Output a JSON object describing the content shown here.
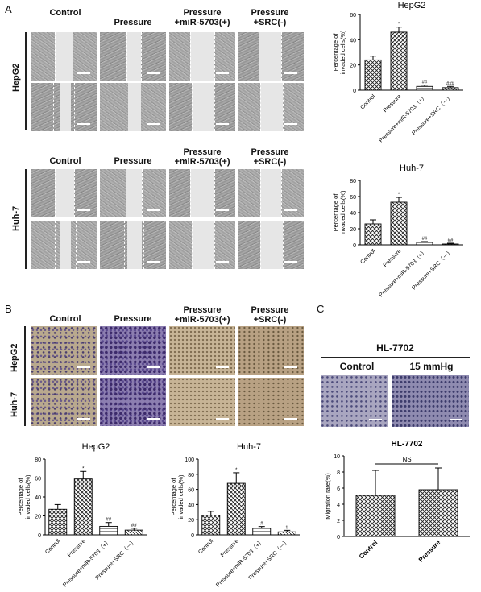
{
  "panels": {
    "A": "A",
    "B": "B",
    "C": "C"
  },
  "col_titles": {
    "control": "Control",
    "pressure": "Pressure",
    "mir_line1": "Pressure",
    "mir_line2": "+miR-5703(+)",
    "src_line1": "Pressure",
    "src_line2": "+SRC(-)"
  },
  "row_labels": {
    "hepg2": "HepG2",
    "huh7": "Huh-7"
  },
  "panel_c": {
    "title": "HL-7702",
    "control": "Control",
    "pressure": "15 mmHg"
  },
  "chart_data": [
    {
      "type": "bar",
      "title": "HepG2",
      "ylabel": "Percentage of invaded cells(%)",
      "categories": [
        "Control",
        "Pressure",
        "Pressure+miR-5703（+）",
        "Pressure+SRC（－）"
      ],
      "values": [
        24,
        46,
        3,
        2
      ],
      "errors": [
        3,
        4,
        1,
        1
      ],
      "annotations": [
        "",
        "*",
        "##",
        "###"
      ],
      "ylim": [
        0,
        60
      ],
      "yticks": [
        "0",
        "20",
        "40",
        "60"
      ]
    },
    {
      "type": "bar",
      "title": "Huh-7",
      "ylabel": "Percentage of invaded cells(%)",
      "categories": [
        "Control",
        "Pressure",
        "Pressure+miR-5703（+）",
        "Pressure+SRC（－）"
      ],
      "values": [
        26,
        53,
        3,
        1
      ],
      "errors": [
        5,
        6,
        1,
        1
      ],
      "annotations": [
        "",
        "*",
        "##",
        "##"
      ],
      "ylim": [
        0,
        80
      ],
      "yticks": [
        "0",
        "20",
        "40",
        "60",
        "80"
      ]
    },
    {
      "type": "bar",
      "title": "HepG2",
      "ylabel": "Percentage of invaded cells(%)",
      "categories": [
        "Control",
        "Pressure",
        "Pressure+miR-5703（+）",
        "Pressure+SRC（－）"
      ],
      "values": [
        27,
        59,
        9,
        5
      ],
      "errors": [
        5,
        8,
        4,
        2
      ],
      "annotations": [
        "",
        "*",
        "##",
        "##"
      ],
      "ylim": [
        0,
        80
      ],
      "yticks": [
        "0",
        "20",
        "40",
        "60",
        "80"
      ]
    },
    {
      "type": "bar",
      "title": "Huh-7",
      "ylabel": "Percentage of invaded cells(%)",
      "categories": [
        "Control",
        "Pressure",
        "Pressure+miR-5703（+）",
        "Pressure+SRC（－）"
      ],
      "values": [
        26,
        68,
        9,
        4
      ],
      "errors": [
        5,
        14,
        2,
        2
      ],
      "annotations": [
        "",
        "*",
        "#",
        "#"
      ],
      "ylim": [
        0,
        100
      ],
      "yticks": [
        "0",
        "20",
        "40",
        "60",
        "80",
        "100"
      ]
    },
    {
      "type": "bar",
      "title": "HL-7702",
      "ylabel": "Migration rate(%)",
      "categories": [
        "Control",
        "Pressure"
      ],
      "values": [
        5.1,
        5.8
      ],
      "errors": [
        3.1,
        2.7
      ],
      "annotations": [
        "NS"
      ],
      "ylim": [
        0,
        10
      ],
      "yticks": [
        "0",
        "2",
        "4",
        "6",
        "8",
        "10"
      ]
    }
  ]
}
